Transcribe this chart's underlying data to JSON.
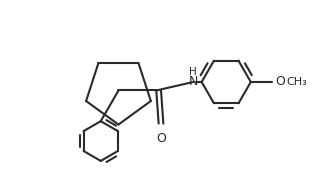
{
  "background_color": "#ffffff",
  "line_color": "#2a2a2a",
  "line_width": 1.5,
  "figsize": [
    3.22,
    1.81
  ],
  "dpi": 100,
  "xlim": [
    -0.5,
    5.5
  ],
  "ylim": [
    -1.8,
    2.0
  ],
  "quat_x": 1.6,
  "quat_y": 0.1,
  "cyclopentane_r": 0.72,
  "phenyl_r": 0.42,
  "methoxyphenyl_r": 0.52
}
